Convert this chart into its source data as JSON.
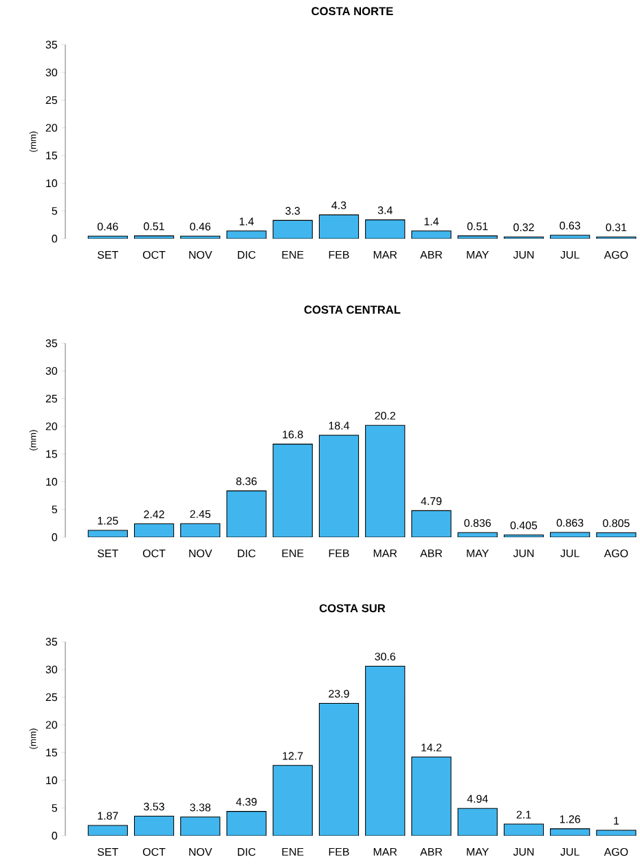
{
  "chart_data": [
    {
      "type": "bar",
      "title": "COSTA NORTE",
      "ylabel": "(mm)",
      "categories": [
        "SET",
        "OCT",
        "NOV",
        "DIC",
        "ENE",
        "FEB",
        "MAR",
        "ABR",
        "MAY",
        "JUN",
        "JUL",
        "AGO"
      ],
      "values": [
        0.46,
        0.51,
        0.46,
        1.4,
        3.3,
        4.3,
        3.4,
        1.4,
        0.51,
        0.32,
        0.63,
        0.31
      ],
      "color": "#41b6ee",
      "ylim": [
        0,
        35
      ],
      "yticks": [
        0,
        5,
        10,
        15,
        20,
        25,
        30,
        35
      ],
      "data_labels": true
    },
    {
      "type": "bar",
      "title": "COSTA CENTRAL",
      "ylabel": "(mm)",
      "categories": [
        "SET",
        "OCT",
        "NOV",
        "DIC",
        "ENE",
        "FEB",
        "MAR",
        "ABR",
        "MAY",
        "JUN",
        "JUL",
        "AGO"
      ],
      "values": [
        1.25,
        2.42,
        2.45,
        8.36,
        16.8,
        18.4,
        20.2,
        4.79,
        0.836,
        0.405,
        0.863,
        0.805
      ],
      "color": "#41b6ee",
      "ylim": [
        0,
        35
      ],
      "yticks": [
        0,
        5,
        10,
        15,
        20,
        25,
        30,
        35
      ],
      "data_labels": true
    },
    {
      "type": "bar",
      "title": "COSTA SUR",
      "ylabel": "(mm)",
      "categories": [
        "SET",
        "OCT",
        "NOV",
        "DIC",
        "ENE",
        "FEB",
        "MAR",
        "ABR",
        "MAY",
        "JUN",
        "JUL",
        "AGO"
      ],
      "values": [
        1.87,
        3.53,
        3.38,
        4.39,
        12.7,
        23.9,
        30.6,
        14.2,
        4.94,
        2.1,
        1.26,
        1
      ],
      "color": "#41b6ee",
      "ylim": [
        0,
        35
      ],
      "yticks": [
        0,
        5,
        10,
        15,
        20,
        25,
        30,
        35
      ],
      "data_labels": true
    }
  ]
}
